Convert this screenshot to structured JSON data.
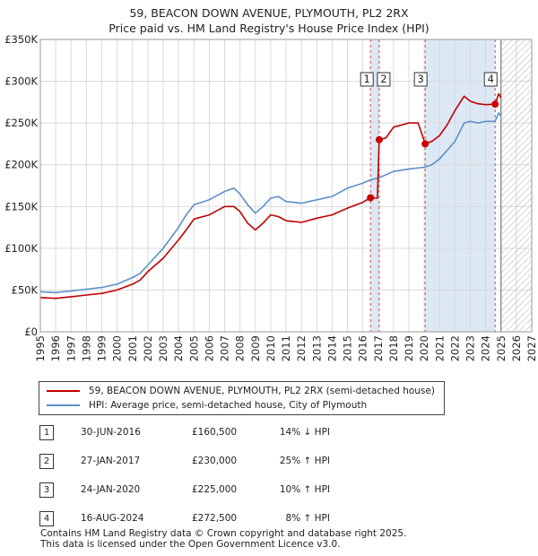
{
  "title_line1": "59, BEACON DOWN AVENUE, PLYMOUTH, PL2 2RX",
  "title_line2": "Price paid vs. HM Land Registry's House Price Index (HPI)",
  "colors": {
    "property": "#c00000",
    "hpi": "#5b8fc9",
    "highlight": "#dde8f5",
    "sale_marker": "#cc0000"
  },
  "chart_data": {
    "type": "line",
    "title": "59, BEACON DOWN AVENUE, PLYMOUTH, PL2 2RX — Price paid vs. HM Land Registry's House Price Index (HPI)",
    "xlabel": "",
    "ylabel": "",
    "xlim": [
      1995,
      2027
    ],
    "ylim": [
      0,
      350000
    ],
    "x_ticks": [
      "1995",
      "1996",
      "1997",
      "1998",
      "1999",
      "2000",
      "2001",
      "2002",
      "2003",
      "2004",
      "2005",
      "2006",
      "2007",
      "2008",
      "2009",
      "2010",
      "2011",
      "2012",
      "2013",
      "2014",
      "2015",
      "2016",
      "2017",
      "2018",
      "2019",
      "2020",
      "2021",
      "2022",
      "2023",
      "2024",
      "2025",
      "2026",
      "2027"
    ],
    "y_ticks": [
      {
        "value": 0,
        "label": "£0"
      },
      {
        "value": 50000,
        "label": "£50K"
      },
      {
        "value": 100000,
        "label": "£100K"
      },
      {
        "value": 150000,
        "label": "£150K"
      },
      {
        "value": 200000,
        "label": "£200K"
      },
      {
        "value": 250000,
        "label": "£250K"
      },
      {
        "value": 300000,
        "label": "£300K"
      },
      {
        "value": 350000,
        "label": "£350K"
      }
    ],
    "grid": true,
    "future_hatch_from": 2025.0,
    "series": [
      {
        "name": "59, BEACON DOWN AVENUE, PLYMOUTH, PL2 2RX (semi-detached house)",
        "color_key": "property",
        "points": [
          [
            1995,
            41000
          ],
          [
            1996,
            40000
          ],
          [
            1997,
            42000
          ],
          [
            1998,
            44000
          ],
          [
            1999,
            46000
          ],
          [
            2000,
            50000
          ],
          [
            2001,
            57000
          ],
          [
            2001.5,
            62000
          ],
          [
            2002,
            72000
          ],
          [
            2003,
            88000
          ],
          [
            2004,
            110000
          ],
          [
            2004.5,
            122000
          ],
          [
            2005,
            135000
          ],
          [
            2006,
            140000
          ],
          [
            2007,
            150000
          ],
          [
            2007.6,
            150000
          ],
          [
            2008,
            144000
          ],
          [
            2008.5,
            130000
          ],
          [
            2009,
            122000
          ],
          [
            2009.5,
            130000
          ],
          [
            2010,
            140000
          ],
          [
            2010.5,
            138000
          ],
          [
            2011,
            133000
          ],
          [
            2012,
            131000
          ],
          [
            2013,
            136000
          ],
          [
            2014,
            140000
          ],
          [
            2015,
            148000
          ],
          [
            2016,
            155000
          ],
          [
            2016.5,
            160500
          ],
          [
            2016.95,
            160000
          ],
          [
            2017.07,
            230000
          ],
          [
            2017.5,
            232000
          ],
          [
            2018,
            245000
          ],
          [
            2019,
            250000
          ],
          [
            2019.6,
            250000
          ],
          [
            2020.06,
            225000
          ],
          [
            2020.5,
            228000
          ],
          [
            2021,
            235000
          ],
          [
            2021.5,
            248000
          ],
          [
            2022,
            265000
          ],
          [
            2022.6,
            282000
          ],
          [
            2023,
            276000
          ],
          [
            2023.5,
            273000
          ],
          [
            2024,
            272000
          ],
          [
            2024.62,
            272500
          ],
          [
            2024.85,
            285000
          ],
          [
            2025.0,
            280000
          ]
        ]
      },
      {
        "name": "HPI: Average price, semi-detached house, City of Plymouth",
        "color_key": "hpi",
        "points": [
          [
            1995,
            48000
          ],
          [
            1996,
            47000
          ],
          [
            1997,
            49000
          ],
          [
            1998,
            51000
          ],
          [
            1999,
            53000
          ],
          [
            2000,
            57000
          ],
          [
            2001,
            65000
          ],
          [
            2001.5,
            70000
          ],
          [
            2002,
            80000
          ],
          [
            2003,
            100000
          ],
          [
            2004,
            125000
          ],
          [
            2004.5,
            140000
          ],
          [
            2005,
            152000
          ],
          [
            2006,
            158000
          ],
          [
            2007,
            168000
          ],
          [
            2007.6,
            172000
          ],
          [
            2008,
            165000
          ],
          [
            2008.5,
            152000
          ],
          [
            2009,
            142000
          ],
          [
            2009.5,
            150000
          ],
          [
            2010,
            160000
          ],
          [
            2010.5,
            162000
          ],
          [
            2011,
            156000
          ],
          [
            2012,
            154000
          ],
          [
            2013,
            158000
          ],
          [
            2014,
            162000
          ],
          [
            2015,
            172000
          ],
          [
            2016,
            178000
          ],
          [
            2016.5,
            182000
          ],
          [
            2017,
            184000
          ],
          [
            2018,
            192000
          ],
          [
            2019,
            195000
          ],
          [
            2020,
            197000
          ],
          [
            2020.5,
            200000
          ],
          [
            2021,
            207000
          ],
          [
            2022,
            228000
          ],
          [
            2022.6,
            250000
          ],
          [
            2023,
            252000
          ],
          [
            2023.5,
            250000
          ],
          [
            2024,
            252000
          ],
          [
            2024.62,
            252000
          ],
          [
            2024.85,
            262000
          ],
          [
            2025.0,
            258000
          ]
        ]
      }
    ],
    "sales": [
      {
        "n": "1",
        "x": 2016.5,
        "price": 160500
      },
      {
        "n": "2",
        "x": 2017.07,
        "price": 230000
      },
      {
        "n": "3",
        "x": 2020.06,
        "price": 225000
      },
      {
        "n": "4",
        "x": 2024.62,
        "price": 272500
      }
    ],
    "highlight_bands": [
      [
        2016.5,
        2017.07
      ],
      [
        2020.06,
        2024.62
      ]
    ]
  },
  "legend": {
    "property_label": "59, BEACON DOWN AVENUE, PLYMOUTH, PL2 2RX (semi-detached house)",
    "hpi_label": "HPI: Average price, semi-detached house, City of Plymouth"
  },
  "sales_table": [
    {
      "n": "1",
      "date": "30-JUN-2016",
      "price": "£160,500",
      "hpi": "14% ↓ HPI"
    },
    {
      "n": "2",
      "date": "27-JAN-2017",
      "price": "£230,000",
      "hpi": "25% ↑ HPI"
    },
    {
      "n": "3",
      "date": "24-JAN-2020",
      "price": "£225,000",
      "hpi": "10% ↑ HPI"
    },
    {
      "n": "4",
      "date": "16-AUG-2024",
      "price": "£272,500",
      "hpi": "8% ↑ HPI"
    }
  ],
  "footer_line1": "Contains HM Land Registry data © Crown copyright and database right 2025.",
  "footer_line2": "This data is licensed under the Open Government Licence v3.0."
}
